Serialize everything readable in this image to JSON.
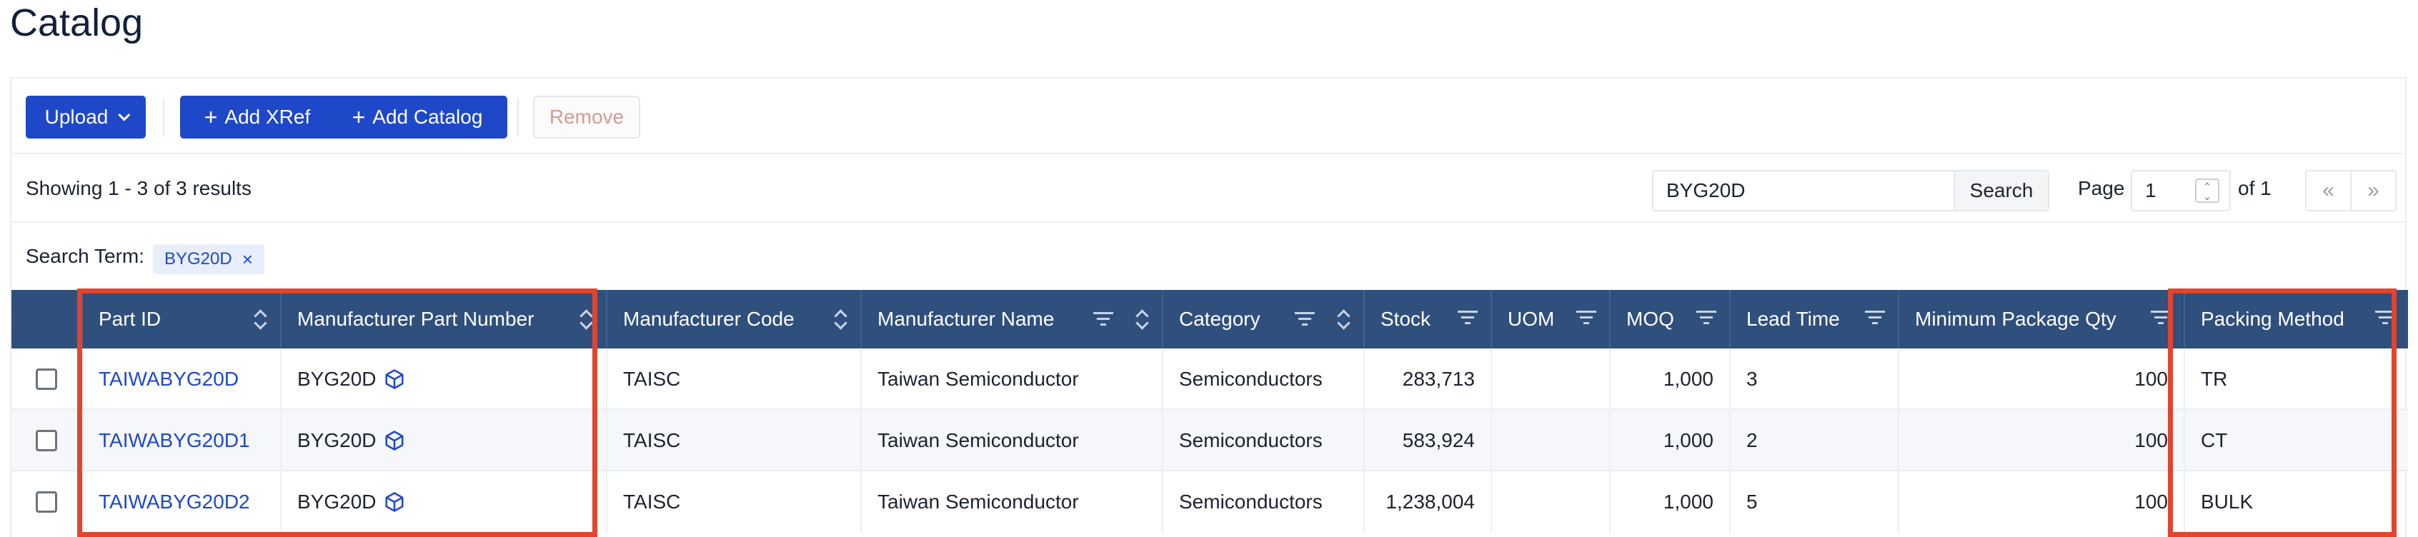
{
  "page": {
    "title": "Catalog"
  },
  "toolbar": {
    "upload_label": "Upload",
    "add_xref_label": "Add XRef",
    "add_catalog_label": "Add Catalog",
    "remove_label": "Remove"
  },
  "results": {
    "summary": "Showing 1 - 3 of 3 results",
    "search_value": "BYG20D",
    "search_button": "Search",
    "page_label": "Page",
    "page_value": "1",
    "of_label": "of 1",
    "first_glyph": "«",
    "last_glyph": "»"
  },
  "search_term": {
    "label": "Search Term:",
    "tag": "BYG20D",
    "remove_glyph": "×"
  },
  "table": {
    "columns": [
      {
        "label": "Part ID",
        "filter": false,
        "sort": true
      },
      {
        "label": "Manufacturer Part Number",
        "filter": false,
        "sort": true
      },
      {
        "label": "Manufacturer Code",
        "filter": false,
        "sort": true
      },
      {
        "label": "Manufacturer Name",
        "filter": true,
        "sort": true
      },
      {
        "label": "Category",
        "filter": true,
        "sort": true
      },
      {
        "label": "Stock",
        "filter": true,
        "sort": false
      },
      {
        "label": "UOM",
        "filter": true,
        "sort": false
      },
      {
        "label": "MOQ",
        "filter": true,
        "sort": false
      },
      {
        "label": "Lead Time",
        "filter": true,
        "sort": false
      },
      {
        "label": "Minimum Package Qty",
        "filter": true,
        "sort": false
      },
      {
        "label": "Packing Method",
        "filter": true,
        "sort": false
      }
    ],
    "rows": [
      {
        "part_id": "TAIWABYG20D",
        "mpn": "BYG20D",
        "mfr_code": "TAISC",
        "mfr_name": "Taiwan Semiconductor",
        "category": "Semiconductors",
        "stock": "283,713",
        "uom": "",
        "moq": "1,000",
        "lead_time": "3",
        "min_pkg_qty": "100",
        "packing": "TR"
      },
      {
        "part_id": "TAIWABYG20D1",
        "mpn": "BYG20D",
        "mfr_code": "TAISC",
        "mfr_name": "Taiwan Semiconductor",
        "category": "Semiconductors",
        "stock": "583,924",
        "uom": "",
        "moq": "1,000",
        "lead_time": "2",
        "min_pkg_qty": "100",
        "packing": "CT"
      },
      {
        "part_id": "TAIWABYG20D2",
        "mpn": "BYG20D",
        "mfr_code": "TAISC",
        "mfr_name": "Taiwan Semiconductor",
        "category": "Semiconductors",
        "stock": "1,238,004",
        "uom": "",
        "moq": "1,000",
        "lead_time": "5",
        "min_pkg_qty": "100",
        "packing": "BULK"
      }
    ]
  },
  "colors": {
    "primary": "#1f48c9",
    "header_bg": "#2f4f7c",
    "highlight": "#e2442d",
    "link": "#1f48c9"
  }
}
